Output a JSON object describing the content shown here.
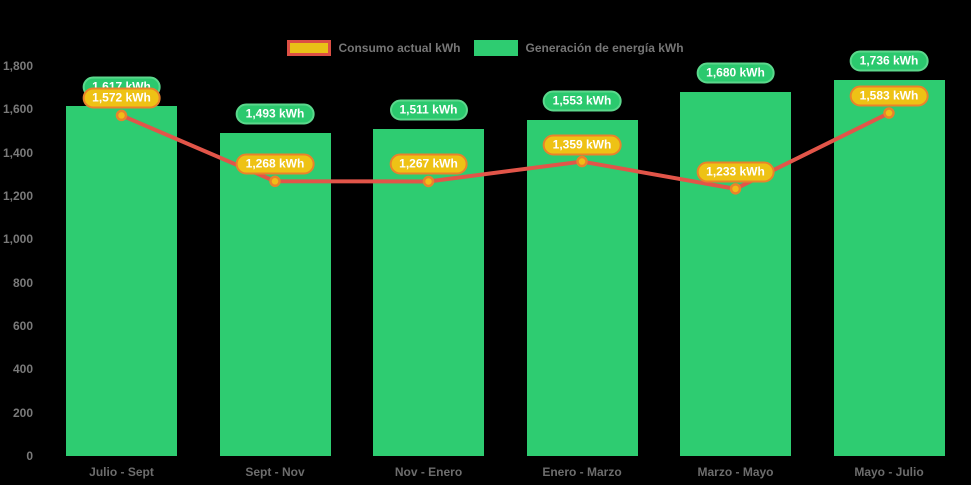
{
  "page": {
    "background_color": "#000000"
  },
  "legend": {
    "position": "top",
    "items": [
      {
        "label": "Consumo actual kWh",
        "swatch_fill": "#e9c116",
        "swatch_border": "#dc4f44"
      },
      {
        "label": "Generación de energía kWh",
        "swatch_fill": "#2ecc71",
        "swatch_border": "#2ecc71"
      }
    ]
  },
  "chart_data": {
    "type": "bar",
    "subtype": "bar-with-line-overlay",
    "categories": [
      "Julio - Sept",
      "Sept - Nov",
      "Nov - Enero",
      "Enero - Marzo",
      "Marzo - Mayo",
      "Mayo - Julio"
    ],
    "series": [
      {
        "name": "Generación de energía kWh",
        "type": "bar",
        "values": [
          1617,
          1493,
          1511,
          1553,
          1680,
          1736
        ],
        "bar_color": "#2ecc71",
        "label_bg": "#2bc96e",
        "label_border": "#5bd88c",
        "label_text_color": "#ffffff"
      },
      {
        "name": "Consumo actual kWh",
        "type": "line",
        "values": [
          1572,
          1268,
          1267,
          1359,
          1233,
          1583
        ],
        "line_color": "#e25549",
        "point_fill": "#f2bc17",
        "point_border": "#e9832b",
        "label_bg": "#eec215",
        "label_border": "#e9832b",
        "label_text_color": "#ffffff"
      }
    ],
    "value_suffix": " kWh",
    "data_labels_visible": true,
    "ylim": [
      0,
      1800
    ],
    "ytick_step": 200,
    "ytick_labels": [
      "0",
      "200",
      "400",
      "600",
      "800",
      "1,000",
      "1,200",
      "1,400",
      "1,600",
      "1,800"
    ],
    "xlabel": "",
    "ylabel": "",
    "title": "",
    "grid": false,
    "legend_position": "top",
    "axis_text_color": "#7a7a7a"
  }
}
